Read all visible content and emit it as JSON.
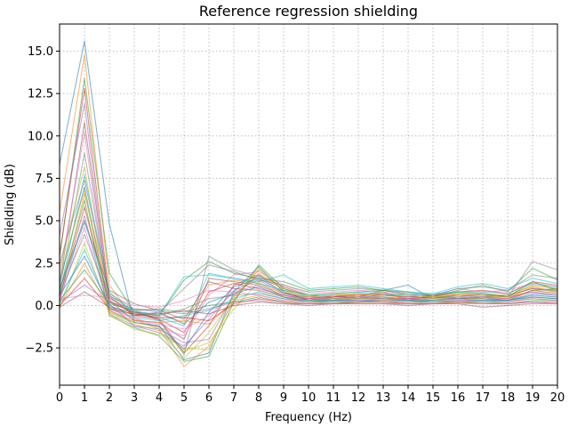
{
  "chart_data": {
    "type": "line",
    "title": "Reference regression shielding",
    "xlabel": "Frequency (Hz)",
    "ylabel": "Shielding (dB)",
    "xlim": [
      0,
      20
    ],
    "ylim": [
      -4.7,
      16.6
    ],
    "xticks": [
      "0",
      "1",
      "2",
      "3",
      "4",
      "5",
      "6",
      "7",
      "8",
      "9",
      "10",
      "11",
      "12",
      "13",
      "14",
      "15",
      "16",
      "17",
      "18",
      "19",
      "20"
    ],
    "yticks": [
      "−2.5",
      "0.0",
      "2.5",
      "5.0",
      "7.5",
      "10.0",
      "12.5",
      "15.0"
    ],
    "ytick_values": [
      -2.5,
      0,
      2.5,
      5,
      7.5,
      10,
      12.5,
      15
    ],
    "grid": true,
    "legend": "none",
    "x": [
      0,
      1,
      2,
      3,
      4,
      5,
      6,
      7,
      8,
      9,
      10,
      11,
      12,
      13,
      14,
      15,
      16,
      17,
      18,
      19,
      20
    ],
    "series_colors": [
      "#1f77b4",
      "#ff7f0e",
      "#2ca02c",
      "#d62728",
      "#9467bd",
      "#8c564b",
      "#e377c2",
      "#7f7f7f",
      "#bcbd22",
      "#17becf"
    ],
    "series": [
      {
        "values": [
          8.3,
          15.6,
          4.8,
          -1.0,
          -1.2,
          -3.2,
          -2.8,
          0.8,
          2.3,
          0.8,
          0.3,
          0.4,
          0.5,
          0.9,
          1.2,
          0.4,
          0.6,
          0.5,
          0.3,
          0.9,
          1.0
        ]
      },
      {
        "values": [
          5.5,
          14.8,
          1.2,
          -0.8,
          -1.4,
          -3.6,
          -2.4,
          0.3,
          2.1,
          0.9,
          0.4,
          0.3,
          0.6,
          0.8,
          0.3,
          0.4,
          0.7,
          0.6,
          0.4,
          1.1,
          0.8
        ]
      },
      {
        "values": [
          2.8,
          13.4,
          1.9,
          -0.4,
          -0.6,
          1.5,
          2.6,
          1.9,
          1.6,
          1.4,
          0.9,
          1.0,
          1.1,
          0.9,
          0.6,
          0.5,
          0.9,
          1.2,
          0.8,
          2.2,
          1.5
        ]
      },
      {
        "values": [
          3.0,
          12.8,
          0.5,
          -0.6,
          -0.8,
          -2.8,
          -1.2,
          1.2,
          1.8,
          1.1,
          0.6,
          0.5,
          0.7,
          0.6,
          0.5,
          0.6,
          0.8,
          0.9,
          0.7,
          1.4,
          1.2
        ]
      },
      {
        "values": [
          4.1,
          11.9,
          0.1,
          -1.2,
          -1.6,
          -2.4,
          -0.8,
          0.9,
          1.5,
          0.7,
          0.4,
          0.6,
          0.4,
          0.7,
          0.4,
          0.5,
          0.5,
          0.7,
          0.5,
          0.8,
          0.6
        ]
      },
      {
        "values": [
          1.2,
          10.8,
          0.3,
          -0.9,
          -1.0,
          -2.0,
          1.6,
          1.4,
          1.2,
          0.6,
          0.3,
          0.5,
          0.6,
          0.5,
          0.3,
          0.6,
          0.4,
          0.5,
          0.6,
          1.0,
          0.9
        ]
      },
      {
        "values": [
          1.8,
          10.2,
          -0.2,
          -0.7,
          -1.3,
          -1.8,
          0.6,
          1.8,
          2.0,
          1.2,
          0.7,
          0.8,
          0.9,
          0.8,
          0.7,
          0.6,
          1.0,
          0.8,
          0.9,
          1.3,
          1.1
        ]
      },
      {
        "values": [
          0.9,
          9.0,
          0.4,
          -0.3,
          -0.9,
          -2.9,
          2.9,
          2.1,
          1.7,
          1.0,
          0.5,
          0.4,
          0.5,
          0.6,
          0.5,
          0.4,
          0.6,
          0.6,
          0.5,
          2.6,
          2.1
        ]
      },
      {
        "values": [
          2.2,
          8.2,
          -0.4,
          -1.1,
          -1.5,
          -3.1,
          -1.6,
          0.5,
          1.9,
          0.9,
          0.6,
          0.7,
          0.6,
          0.7,
          0.6,
          0.5,
          0.7,
          0.7,
          0.6,
          1.2,
          1.0
        ]
      },
      {
        "values": [
          0.6,
          7.7,
          0.8,
          -0.5,
          -0.7,
          -1.2,
          1.9,
          1.6,
          1.4,
          1.8,
          1.0,
          1.1,
          1.2,
          1.0,
          0.8,
          0.7,
          1.1,
          1.3,
          1.0,
          1.6,
          1.3
        ]
      },
      {
        "values": [
          1.4,
          7.0,
          -0.3,
          -1.0,
          -1.2,
          -2.6,
          -0.4,
          1.1,
          1.6,
          0.8,
          0.3,
          0.4,
          0.4,
          0.5,
          0.4,
          0.3,
          0.5,
          0.4,
          0.3,
          0.7,
          0.6
        ]
      },
      {
        "values": [
          0.3,
          6.6,
          0.6,
          -0.6,
          -0.5,
          -1.0,
          1.2,
          1.5,
          1.3,
          0.7,
          0.5,
          0.6,
          0.7,
          0.6,
          0.5,
          0.6,
          0.7,
          0.6,
          0.5,
          1.2,
          1.0
        ]
      },
      {
        "values": [
          0.8,
          6.2,
          -0.6,
          -1.3,
          -1.8,
          -3.3,
          -3.0,
          0.2,
          2.4,
          1.0,
          0.6,
          0.7,
          0.8,
          0.9,
          0.8,
          0.6,
          0.8,
          0.7,
          0.5,
          1.4,
          0.9
        ]
      },
      {
        "values": [
          0.5,
          5.8,
          0.2,
          -0.4,
          -0.8,
          -1.6,
          0.8,
          1.3,
          1.0,
          0.6,
          0.4,
          0.5,
          0.5,
          0.4,
          0.4,
          0.5,
          0.4,
          0.5,
          0.4,
          0.9,
          0.7
        ]
      },
      {
        "values": [
          0.2,
          5.3,
          -0.5,
          -1.2,
          -1.4,
          -2.2,
          -2.0,
          0.6,
          1.8,
          0.7,
          0.5,
          0.6,
          0.6,
          0.7,
          0.5,
          0.6,
          0.6,
          0.6,
          0.6,
          1.0,
          0.8
        ]
      },
      {
        "values": [
          1.0,
          5.0,
          0.9,
          0.1,
          -0.3,
          -0.8,
          1.4,
          1.0,
          0.9,
          0.5,
          0.3,
          0.3,
          0.4,
          0.4,
          0.3,
          0.3,
          0.4,
          0.4,
          0.3,
          0.6,
          0.5
        ]
      },
      {
        "values": [
          0.4,
          4.6,
          -0.2,
          -0.8,
          -1.1,
          -1.4,
          -0.6,
          0.8,
          1.2,
          0.6,
          0.4,
          0.4,
          0.5,
          0.5,
          0.4,
          0.4,
          0.5,
          0.5,
          0.4,
          0.8,
          0.6
        ]
      },
      {
        "values": [
          0.7,
          4.2,
          0.3,
          -0.5,
          -0.6,
          -0.2,
          0.4,
          0.6,
          0.7,
          0.4,
          0.2,
          0.3,
          0.3,
          0.3,
          0.2,
          0.3,
          0.3,
          0.3,
          0.2,
          0.5,
          0.4
        ]
      },
      {
        "values": [
          -0.2,
          3.7,
          -0.4,
          -1.0,
          -1.3,
          -2.7,
          -2.2,
          -0.2,
          1.4,
          0.5,
          0.3,
          0.4,
          0.4,
          0.5,
          0.3,
          0.4,
          0.5,
          0.4,
          0.3,
          0.9,
          0.7
        ]
      },
      {
        "values": [
          0.1,
          3.3,
          -0.1,
          -0.7,
          -0.9,
          -0.6,
          -0.3,
          0.4,
          0.8,
          0.4,
          0.3,
          0.3,
          0.3,
          0.4,
          0.3,
          0.3,
          0.4,
          0.3,
          0.3,
          0.6,
          0.5
        ]
      },
      {
        "values": [
          0.6,
          2.9,
          0.0,
          -0.6,
          -0.4,
          -1.1,
          0.2,
          0.7,
          1.1,
          0.5,
          0.2,
          0.3,
          0.3,
          0.3,
          0.3,
          0.2,
          0.3,
          0.3,
          0.3,
          0.5,
          0.4
        ]
      },
      {
        "values": [
          -0.1,
          2.5,
          -0.3,
          -0.9,
          -1.0,
          -0.9,
          -1.1,
          0.3,
          0.6,
          0.3,
          0.2,
          0.2,
          0.2,
          0.3,
          0.2,
          0.2,
          0.2,
          0.2,
          0.2,
          0.4,
          0.3
        ]
      },
      {
        "values": [
          0.3,
          2.1,
          0.1,
          -0.3,
          -0.2,
          -0.4,
          0.0,
          0.2,
          0.5,
          0.2,
          0.1,
          0.2,
          0.2,
          0.2,
          0.1,
          0.2,
          0.2,
          0.2,
          0.1,
          0.3,
          0.3
        ]
      },
      {
        "values": [
          0.0,
          1.6,
          -0.2,
          -0.5,
          -0.7,
          -0.7,
          -0.9,
          0.1,
          0.4,
          0.2,
          0.1,
          0.1,
          0.2,
          0.2,
          0.1,
          0.1,
          0.2,
          0.1,
          0.1,
          0.2,
          0.2
        ]
      },
      {
        "values": [
          0.2,
          1.2,
          0.2,
          -0.2,
          -0.3,
          -0.5,
          -0.2,
          0.2,
          0.3,
          0.1,
          0.1,
          0.1,
          0.1,
          0.1,
          0.1,
          0.1,
          0.1,
          0.1,
          0.1,
          0.2,
          0.1
        ]
      },
      {
        "values": [
          -0.1,
          0.8,
          -0.1,
          -0.4,
          -0.5,
          -0.3,
          -0.5,
          0.0,
          0.2,
          0.1,
          0.0,
          0.1,
          0.1,
          0.1,
          0.0,
          0.1,
          0.1,
          -0.1,
          0.0,
          0.1,
          0.1
        ]
      },
      {
        "values": [
          0.4,
          0.6,
          0.5,
          0.0,
          -0.1,
          0.3,
          0.9,
          0.8,
          0.6,
          0.3,
          0.2,
          0.2,
          0.3,
          0.2,
          0.2,
          0.2,
          0.3,
          0.2,
          0.2,
          0.4,
          0.3
        ]
      },
      {
        "values": [
          2.5,
          7.4,
          0.7,
          -0.2,
          -0.4,
          1.0,
          2.4,
          2.0,
          1.5,
          1.2,
          0.8,
          0.9,
          1.0,
          0.9,
          0.7,
          0.6,
          1.0,
          1.1,
          0.9,
          1.8,
          1.6
        ]
      },
      {
        "values": [
          1.6,
          6.8,
          -0.5,
          -1.4,
          -1.7,
          -2.5,
          -2.6,
          0.4,
          2.2,
          0.8,
          0.5,
          0.6,
          0.6,
          0.7,
          0.6,
          0.5,
          0.6,
          0.6,
          0.5,
          1.1,
          0.8
        ]
      },
      {
        "values": [
          0.9,
          4.9,
          0.6,
          -0.3,
          -0.6,
          1.7,
          1.8,
          1.6,
          1.3,
          0.9,
          0.6,
          0.7,
          0.8,
          0.7,
          0.6,
          0.7,
          0.8,
          0.8,
          0.7,
          1.3,
          1.1
        ]
      }
    ]
  }
}
